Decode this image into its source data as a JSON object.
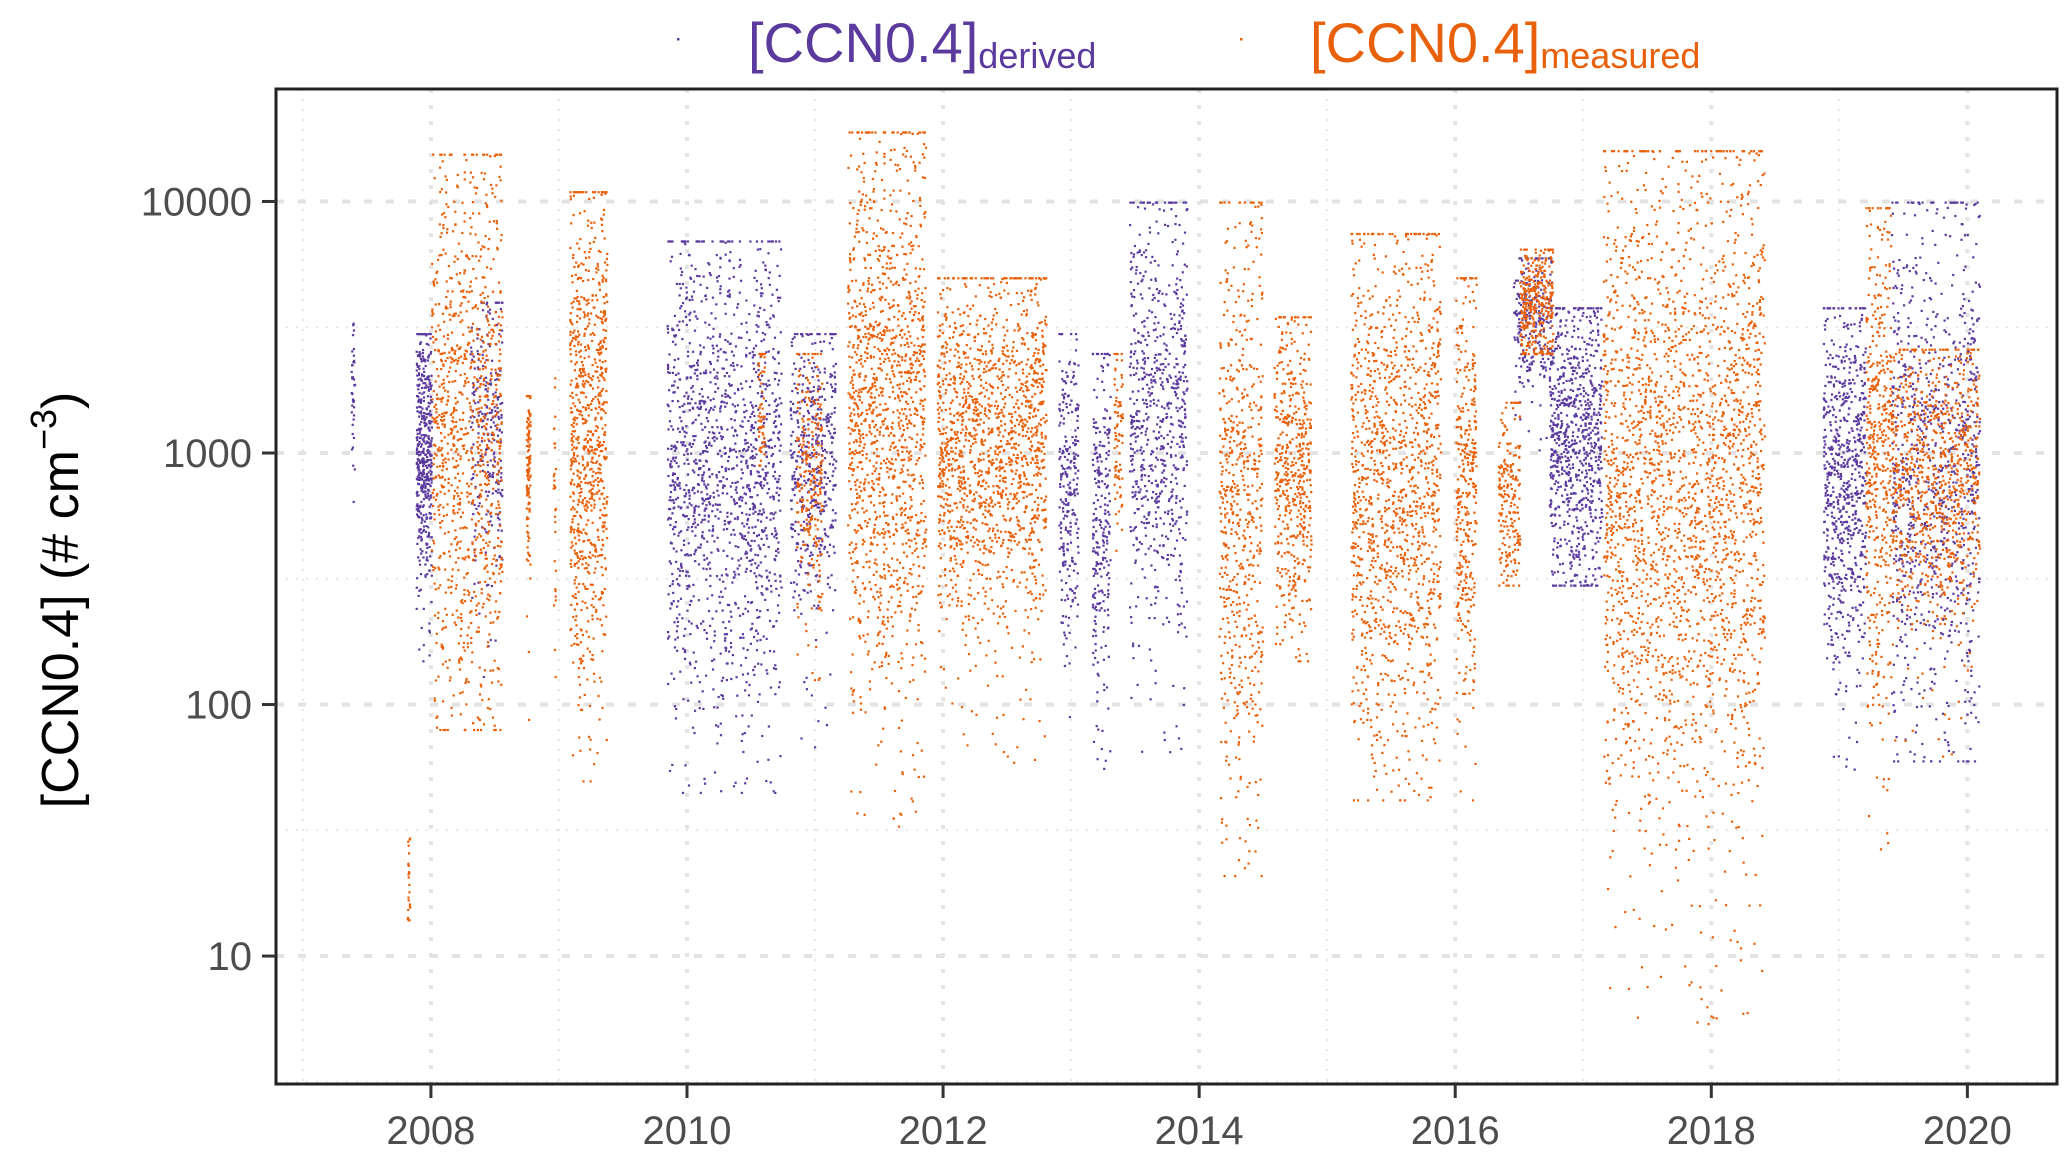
{
  "chart_data": {
    "type": "scatter",
    "title": "",
    "xlabel": "",
    "ylabel": "[CCN0.4] (# cm",
    "ylabel_superscript": "−3",
    "ylabel_close": ")",
    "yscale": "log",
    "xlim": [
      2006.79,
      2020.7
    ],
    "ylim": [
      3.1,
      28000
    ],
    "x_ticks": [
      2008,
      2010,
      2012,
      2014,
      2016,
      2018,
      2020
    ],
    "x_tick_labels": [
      "2008",
      "2010",
      "2012",
      "2014",
      "2016",
      "2018",
      "2020"
    ],
    "y_ticks": [
      10,
      100,
      1000,
      10000
    ],
    "y_tick_labels": [
      "10",
      "100",
      "1000",
      "10000"
    ],
    "grid": true,
    "legend_position": "top-center",
    "legend": [
      {
        "name": "[CCN0.4]",
        "subscript": "derived",
        "color": "#5b3a9e"
      },
      {
        "name": "[CCN0.4]",
        "subscript": "measured",
        "color": "#e8600a"
      }
    ],
    "series": [
      {
        "name": "derived",
        "color": "#5b3a9e",
        "periods": [
          {
            "start": 2007.37,
            "end": 2007.4,
            "median": 1800,
            "lo": 250,
            "hi": 3300,
            "n": 40
          },
          {
            "start": 2007.88,
            "end": 2008.0,
            "median": 1000,
            "lo": 150,
            "hi": 3000,
            "n": 450
          },
          {
            "start": 2008.3,
            "end": 2008.55,
            "median": 1200,
            "lo": 130,
            "hi": 4000,
            "n": 250
          },
          {
            "start": 2009.84,
            "end": 2010.73,
            "median": 850,
            "lo": 45,
            "hi": 7000,
            "n": 1400
          },
          {
            "start": 2010.8,
            "end": 2011.16,
            "median": 900,
            "lo": 55,
            "hi": 3000,
            "n": 450
          },
          {
            "start": 2012.9,
            "end": 2013.05,
            "median": 800,
            "lo": 90,
            "hi": 3000,
            "n": 250
          },
          {
            "start": 2013.16,
            "end": 2013.3,
            "median": 600,
            "lo": 50,
            "hi": 2500,
            "n": 250
          },
          {
            "start": 2013.45,
            "end": 2013.9,
            "median": 1400,
            "lo": 60,
            "hi": 10000,
            "n": 700
          },
          {
            "start": 2016.45,
            "end": 2016.75,
            "median": 3500,
            "lo": 1000,
            "hi": 6000,
            "n": 250
          },
          {
            "start": 2016.73,
            "end": 2017.14,
            "median": 1100,
            "lo": 300,
            "hi": 3800,
            "n": 800
          },
          {
            "start": 2018.87,
            "end": 2019.2,
            "median": 800,
            "lo": 45,
            "hi": 3800,
            "n": 700
          },
          {
            "start": 2019.4,
            "end": 2020.09,
            "median": 900,
            "lo": 60,
            "hi": 10000,
            "n": 900
          }
        ]
      },
      {
        "name": "measured",
        "color": "#e8600a",
        "periods": [
          {
            "start": 2007.81,
            "end": 2007.83,
            "median": 20,
            "lo": 14,
            "hi": 33,
            "n": 25
          },
          {
            "start": 2008.0,
            "end": 2008.55,
            "median": 1200,
            "lo": 80,
            "hi": 15500,
            "n": 1000
          },
          {
            "start": 2008.74,
            "end": 2008.77,
            "median": 800,
            "lo": 60,
            "hi": 1700,
            "n": 120
          },
          {
            "start": 2008.95,
            "end": 2008.97,
            "median": 600,
            "lo": 80,
            "hi": 2000,
            "n": 30
          },
          {
            "start": 2009.08,
            "end": 2009.37,
            "median": 1300,
            "lo": 50,
            "hi": 11000,
            "n": 800
          },
          {
            "start": 2010.55,
            "end": 2010.6,
            "median": 1500,
            "lo": 900,
            "hi": 2500,
            "n": 60
          },
          {
            "start": 2010.85,
            "end": 2011.05,
            "median": 800,
            "lo": 120,
            "hi": 2500,
            "n": 250
          },
          {
            "start": 2011.25,
            "end": 2011.86,
            "median": 1500,
            "lo": 33,
            "hi": 19000,
            "n": 1300
          },
          {
            "start": 2011.95,
            "end": 2012.8,
            "median": 1100,
            "lo": 55,
            "hi": 5000,
            "n": 1500
          },
          {
            "start": 2013.33,
            "end": 2013.4,
            "median": 1200,
            "lo": 400,
            "hi": 2500,
            "n": 80
          },
          {
            "start": 2014.15,
            "end": 2014.49,
            "median": 600,
            "lo": 21,
            "hi": 10000,
            "n": 600
          },
          {
            "start": 2014.58,
            "end": 2014.87,
            "median": 900,
            "lo": 150,
            "hi": 3500,
            "n": 500
          },
          {
            "start": 2015.18,
            "end": 2015.88,
            "median": 750,
            "lo": 42,
            "hi": 7500,
            "n": 1300
          },
          {
            "start": 2016.0,
            "end": 2016.16,
            "median": 700,
            "lo": 42,
            "hi": 5000,
            "n": 350
          },
          {
            "start": 2016.33,
            "end": 2016.5,
            "median": 700,
            "lo": 300,
            "hi": 1600,
            "n": 200
          },
          {
            "start": 2016.5,
            "end": 2016.76,
            "median": 3800,
            "lo": 2500,
            "hi": 6500,
            "n": 350
          },
          {
            "start": 2017.15,
            "end": 2018.41,
            "median": 800,
            "lo": 5,
            "hi": 16000,
            "n": 2400
          },
          {
            "start": 2019.2,
            "end": 2019.4,
            "median": 1000,
            "lo": 25,
            "hi": 9500,
            "n": 450
          },
          {
            "start": 2019.4,
            "end": 2020.09,
            "median": 800,
            "lo": 60,
            "hi": 2600,
            "n": 900
          }
        ]
      }
    ]
  }
}
